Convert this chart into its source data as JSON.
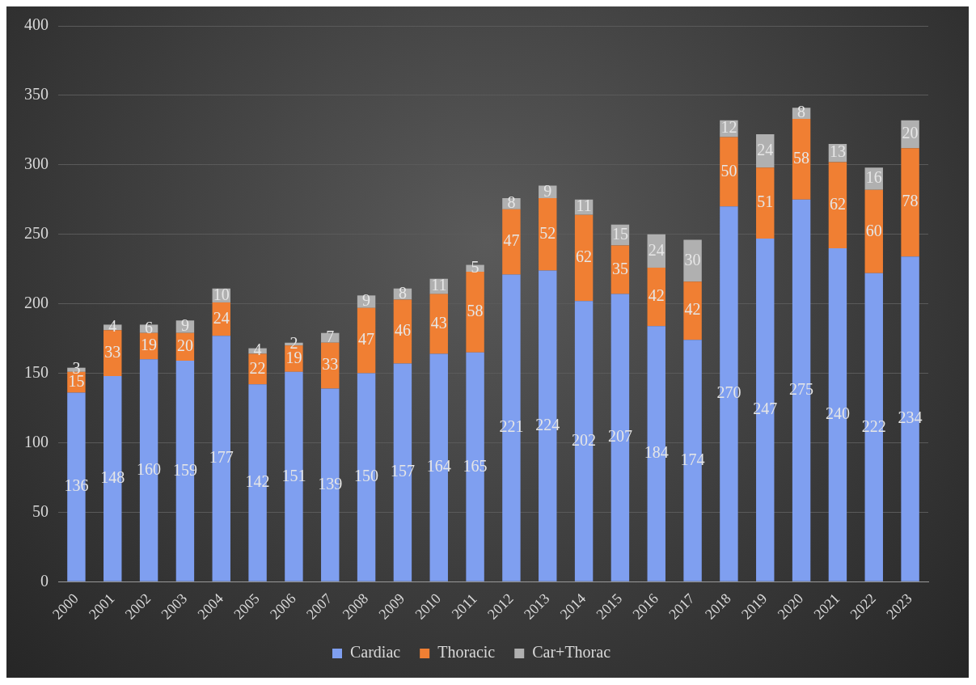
{
  "chart_data": {
    "type": "bar",
    "stacked": true,
    "categories": [
      "2000",
      "2001",
      "2002",
      "2003",
      "2004",
      "2005",
      "2006",
      "2007",
      "2008",
      "2009",
      "2010",
      "2011",
      "2012",
      "2013",
      "2014",
      "2015",
      "2016",
      "2017",
      "2018",
      "2019",
      "2020",
      "2021",
      "2022",
      "2023"
    ],
    "series": [
      {
        "name": "Cardiac",
        "color": "#7f9ff0",
        "values": [
          136,
          148,
          160,
          159,
          177,
          142,
          151,
          139,
          150,
          157,
          164,
          165,
          221,
          224,
          202,
          207,
          184,
          174,
          270,
          247,
          275,
          240,
          222,
          234
        ]
      },
      {
        "name": "Thoracic",
        "color": "#f07f33",
        "values": [
          15,
          33,
          19,
          20,
          24,
          22,
          19,
          33,
          47,
          46,
          43,
          58,
          47,
          52,
          62,
          35,
          42,
          42,
          50,
          51,
          58,
          62,
          60,
          78
        ]
      },
      {
        "name": "Car+Thorac",
        "color": "#b0b0b0",
        "values": [
          3,
          4,
          6,
          9,
          10,
          4,
          2,
          7,
          9,
          8,
          11,
          5,
          8,
          9,
          11,
          15,
          24,
          30,
          12,
          24,
          8,
          13,
          16,
          20
        ]
      }
    ],
    "ylim": [
      0,
      400
    ],
    "yticks": [
      0,
      50,
      100,
      150,
      200,
      250,
      300,
      350,
      400
    ],
    "grid": "y",
    "legend": "bottom",
    "data_labels": true
  }
}
